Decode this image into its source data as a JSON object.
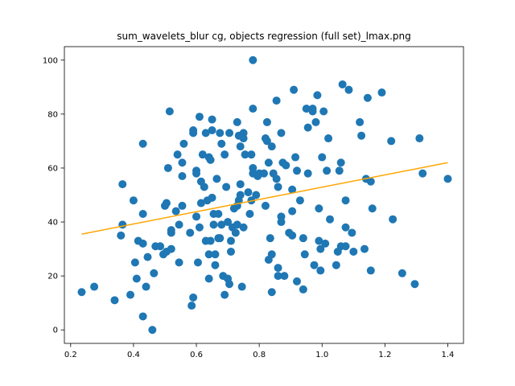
{
  "chart_data": {
    "type": "scatter",
    "title": "sum_wavelets_blur cg, objects regression (full set)_lmax.png",
    "xlabel": "",
    "ylabel": "",
    "xlim": [
      0.18,
      1.45
    ],
    "ylim": [
      -5,
      105
    ],
    "xticks": [
      0.2,
      0.4,
      0.6,
      0.8,
      1.0,
      1.2,
      1.4
    ],
    "xtick_labels": [
      "0.2",
      "0.4",
      "0.6",
      "0.8",
      "1.0",
      "1.2",
      "1.4"
    ],
    "yticks": [
      0,
      20,
      40,
      60,
      80,
      100
    ],
    "ytick_labels": [
      "0",
      "20",
      "40",
      "60",
      "80",
      "100"
    ],
    "grid": false,
    "legend": "none",
    "colors": {
      "points": "#1f77b4",
      "fit": "#ffa500"
    },
    "fit_line": {
      "x": [
        0.235,
        1.4
      ],
      "y": [
        35.5,
        62
      ]
    },
    "points": [
      [
        0.235,
        14
      ],
      [
        0.275,
        16
      ],
      [
        0.34,
        11
      ],
      [
        0.36,
        35
      ],
      [
        0.365,
        39
      ],
      [
        0.365,
        54
      ],
      [
        0.39,
        13
      ],
      [
        0.4,
        48
      ],
      [
        0.405,
        25
      ],
      [
        0.41,
        19
      ],
      [
        0.415,
        33
      ],
      [
        0.43,
        5
      ],
      [
        0.43,
        32
      ],
      [
        0.43,
        43
      ],
      [
        0.43,
        69
      ],
      [
        0.44,
        16
      ],
      [
        0.445,
        27
      ],
      [
        0.46,
        0
      ],
      [
        0.465,
        21
      ],
      [
        0.47,
        31
      ],
      [
        0.485,
        31
      ],
      [
        0.495,
        28
      ],
      [
        0.5,
        46
      ],
      [
        0.505,
        47
      ],
      [
        0.505,
        29
      ],
      [
        0.51,
        60
      ],
      [
        0.515,
        81
      ],
      [
        0.52,
        30
      ],
      [
        0.52,
        37
      ],
      [
        0.52,
        36
      ],
      [
        0.535,
        44
      ],
      [
        0.54,
        65
      ],
      [
        0.545,
        25
      ],
      [
        0.545,
        39
      ],
      [
        0.555,
        46
      ],
      [
        0.56,
        69
      ],
      [
        0.555,
        62
      ],
      [
        0.555,
        57
      ],
      [
        0.58,
        36
      ],
      [
        0.585,
        9
      ],
      [
        0.59,
        12
      ],
      [
        0.59,
        74
      ],
      [
        0.59,
        73
      ],
      [
        0.6,
        59
      ],
      [
        0.6,
        58
      ],
      [
        0.6,
        42
      ],
      [
        0.605,
        25
      ],
      [
        0.61,
        79
      ],
      [
        0.61,
        38
      ],
      [
        0.615,
        47
      ],
      [
        0.615,
        55
      ],
      [
        0.62,
        65
      ],
      [
        0.625,
        53
      ],
      [
        0.63,
        73
      ],
      [
        0.63,
        33
      ],
      [
        0.635,
        48
      ],
      [
        0.64,
        28
      ],
      [
        0.64,
        19
      ],
      [
        0.64,
        64
      ],
      [
        0.645,
        63
      ],
      [
        0.645,
        33
      ],
      [
        0.65,
        74
      ],
      [
        0.65,
        78
      ],
      [
        0.65,
        49
      ],
      [
        0.655,
        43
      ],
      [
        0.655,
        39
      ],
      [
        0.66,
        28
      ],
      [
        0.66,
        24
      ],
      [
        0.665,
        56
      ],
      [
        0.67,
        43
      ],
      [
        0.67,
        34
      ],
      [
        0.675,
        73
      ],
      [
        0.675,
        34
      ],
      [
        0.68,
        69
      ],
      [
        0.68,
        39
      ],
      [
        0.685,
        20
      ],
      [
        0.69,
        13
      ],
      [
        0.69,
        65
      ],
      [
        0.695,
        53
      ],
      [
        0.7,
        19
      ],
      [
        0.7,
        40
      ],
      [
        0.705,
        73
      ],
      [
        0.705,
        17
      ],
      [
        0.71,
        29
      ],
      [
        0.71,
        33
      ],
      [
        0.715,
        38
      ],
      [
        0.72,
        45
      ],
      [
        0.725,
        36
      ],
      [
        0.73,
        77
      ],
      [
        0.73,
        39
      ],
      [
        0.73,
        46
      ],
      [
        0.735,
        72
      ],
      [
        0.735,
        48
      ],
      [
        0.74,
        68
      ],
      [
        0.74,
        54
      ],
      [
        0.74,
        50
      ],
      [
        0.745,
        16
      ],
      [
        0.75,
        73
      ],
      [
        0.75,
        71
      ],
      [
        0.75,
        38
      ],
      [
        0.755,
        65
      ],
      [
        0.765,
        51
      ],
      [
        0.77,
        43
      ],
      [
        0.775,
        65
      ],
      [
        0.775,
        48
      ],
      [
        0.78,
        100
      ],
      [
        0.78,
        82
      ],
      [
        0.78,
        60
      ],
      [
        0.78,
        58
      ],
      [
        0.79,
        50
      ],
      [
        0.795,
        57
      ],
      [
        0.8,
        58
      ],
      [
        0.815,
        58
      ],
      [
        0.82,
        71
      ],
      [
        0.82,
        46
      ],
      [
        0.825,
        77
      ],
      [
        0.825,
        70
      ],
      [
        0.83,
        62
      ],
      [
        0.83,
        26
      ],
      [
        0.835,
        34
      ],
      [
        0.84,
        28
      ],
      [
        0.84,
        68
      ],
      [
        0.84,
        14
      ],
      [
        0.845,
        58
      ],
      [
        0.855,
        85
      ],
      [
        0.855,
        56
      ],
      [
        0.86,
        53
      ],
      [
        0.86,
        23
      ],
      [
        0.86,
        20
      ],
      [
        0.87,
        73
      ],
      [
        0.87,
        42
      ],
      [
        0.87,
        40
      ],
      [
        0.875,
        62
      ],
      [
        0.88,
        20
      ],
      [
        0.885,
        61
      ],
      [
        0.895,
        36
      ],
      [
        0.905,
        52
      ],
      [
        0.905,
        35
      ],
      [
        0.905,
        44
      ],
      [
        0.91,
        89
      ],
      [
        0.915,
        64
      ],
      [
        0.92,
        59
      ],
      [
        0.92,
        18
      ],
      [
        0.93,
        48
      ],
      [
        0.94,
        34
      ],
      [
        0.94,
        15
      ],
      [
        0.945,
        28
      ],
      [
        0.95,
        82
      ],
      [
        0.955,
        75
      ],
      [
        0.955,
        58
      ],
      [
        0.97,
        81
      ],
      [
        0.97,
        82
      ],
      [
        0.975,
        24
      ],
      [
        0.98,
        77
      ],
      [
        0.985,
        87
      ],
      [
        0.99,
        45
      ],
      [
        0.99,
        33
      ],
      [
        0.995,
        22
      ],
      [
        0.995,
        30
      ],
      [
        1.0,
        64
      ],
      [
        1.005,
        81
      ],
      [
        1.01,
        32
      ],
      [
        1.015,
        59
      ],
      [
        1.02,
        71
      ],
      [
        1.025,
        41
      ],
      [
        1.045,
        24
      ],
      [
        1.05,
        29
      ],
      [
        1.055,
        59
      ],
      [
        1.06,
        62
      ],
      [
        1.06,
        31
      ],
      [
        1.065,
        91
      ],
      [
        1.075,
        31
      ],
      [
        1.075,
        48
      ],
      [
        1.075,
        38
      ],
      [
        1.085,
        89
      ],
      [
        1.095,
        36
      ],
      [
        1.1,
        29
      ],
      [
        1.12,
        77
      ],
      [
        1.125,
        72
      ],
      [
        1.135,
        30
      ],
      [
        1.14,
        56
      ],
      [
        1.145,
        86
      ],
      [
        1.155,
        55
      ],
      [
        1.155,
        22
      ],
      [
        1.16,
        45
      ],
      [
        1.19,
        88
      ],
      [
        1.22,
        70
      ],
      [
        1.225,
        41
      ],
      [
        1.255,
        21
      ],
      [
        1.295,
        17
      ],
      [
        1.31,
        71
      ],
      [
        1.32,
        58
      ],
      [
        1.4,
        56
      ]
    ]
  }
}
